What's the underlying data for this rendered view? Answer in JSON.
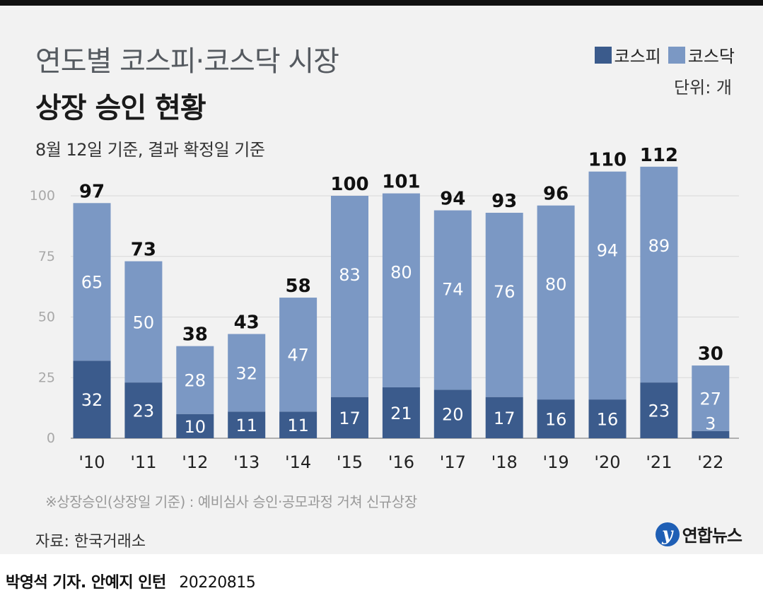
{
  "header": {
    "title_line1": "연도별 코스피·코스닥 시장",
    "title_line2": "상장 승인 현황",
    "subtitle": "8월 12일 기준, 결과 확정일 기준",
    "unit": "단위: 개"
  },
  "legend": {
    "kospi": "코스피",
    "kosdaq": "코스닥"
  },
  "colors": {
    "kospi": "#3b5b8c",
    "kosdaq": "#7b98c4",
    "grid": "#d8d8d8",
    "tick": "#a8a8a8",
    "background": "#f2f2f2"
  },
  "chart_data": {
    "type": "bar",
    "stacked": true,
    "categories": [
      "'10",
      "'11",
      "'12",
      "'13",
      "'14",
      "'15",
      "'16",
      "'17",
      "'18",
      "'19",
      "'20",
      "'21",
      "'22"
    ],
    "series": [
      {
        "name": "코스피",
        "values": [
          32,
          23,
          10,
          11,
          11,
          17,
          21,
          20,
          17,
          16,
          16,
          23,
          3
        ]
      },
      {
        "name": "코스닥",
        "values": [
          65,
          50,
          28,
          32,
          47,
          83,
          80,
          74,
          76,
          80,
          94,
          89,
          27
        ]
      }
    ],
    "totals": [
      97,
      73,
      38,
      43,
      58,
      100,
      101,
      94,
      93,
      96,
      110,
      112,
      30
    ],
    "yticks": [
      0,
      25,
      50,
      75,
      100
    ],
    "ylim": [
      0,
      120
    ],
    "grid": true,
    "legend_position": "top-right"
  },
  "footer": {
    "note": "※상장승인(상장일 기준) : 예비심사 승인·공모과정 거쳐 신규상장",
    "source": "자료: 한국거래소",
    "logo_mark": "y",
    "logo_text": "연합뉴스",
    "credit_names": "박영석 기자. 안예지 인턴",
    "credit_date": "20220815"
  }
}
